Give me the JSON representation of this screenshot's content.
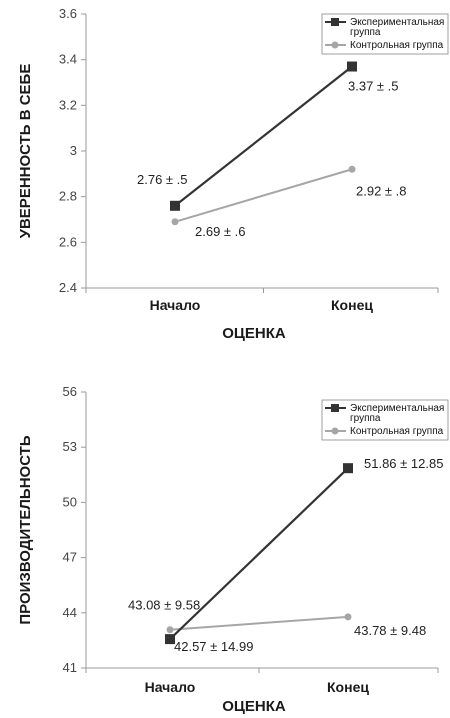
{
  "chart_data": [
    {
      "type": "line",
      "categories": [
        "Начало",
        "Конец"
      ],
      "series": [
        {
          "name": "Экспериментальная группа",
          "values": [
            2.76,
            3.37
          ],
          "color": "#333333",
          "marker": "square",
          "labels": [
            "2.76 ± .5",
            "3.37 ± .5"
          ]
        },
        {
          "name": "Контрольная группа",
          "values": [
            2.69,
            2.92
          ],
          "color": "#a6a6a6",
          "marker": "circle",
          "labels": [
            "2.69 ± .6",
            "2.92 ± .8"
          ]
        }
      ],
      "xlabel": "ОЦЕНКА",
      "ylabel": "УВЕРЕННОСТЬ В СЕБЕ",
      "ylim": [
        2.4,
        3.6
      ],
      "yticks": [
        "2.4",
        "2.6",
        "2.8",
        "3",
        "3.2",
        "3.4",
        "3.6"
      ],
      "ytick_values": [
        2.4,
        2.6,
        2.8,
        3.0,
        3.2,
        3.4,
        3.6
      ],
      "grid": false,
      "legend_position": "top-right"
    },
    {
      "type": "line",
      "categories": [
        "Начало",
        "Конец"
      ],
      "series": [
        {
          "name": "Экспериментальная группа",
          "values": [
            42.57,
            51.86
          ],
          "color": "#333333",
          "marker": "square",
          "labels": [
            "42.57 ± 14.99",
            "51.86 ± 12.85"
          ]
        },
        {
          "name": "Контрольная группа",
          "values": [
            43.08,
            43.78
          ],
          "color": "#a6a6a6",
          "marker": "circle",
          "labels": [
            "43.08 ± 9.58",
            "43.78 ± 9.48"
          ]
        }
      ],
      "xlabel": "ОЦЕНКА",
      "ylabel": "ПРОИЗВОДИТЕЛЬНОСТЬ",
      "ylim": [
        41,
        56
      ],
      "yticks": [
        "41",
        "44",
        "47",
        "50",
        "53",
        "56"
      ],
      "ytick_values": [
        41,
        44,
        47,
        50,
        53,
        56
      ],
      "grid": false,
      "legend_position": "top-right"
    }
  ]
}
